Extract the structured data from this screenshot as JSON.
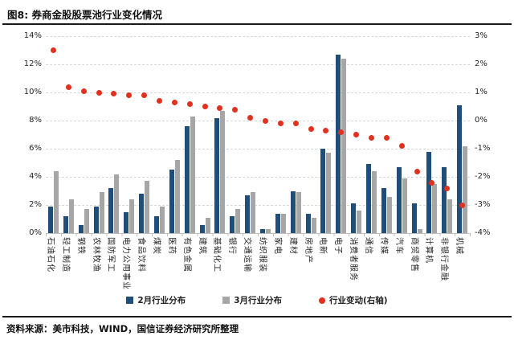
{
  "header": {
    "title": "图8: 券商金股股票池行业变化情况"
  },
  "footer": {
    "source": "资料来源：美市科技，WIND，国信证券经济研究所整理"
  },
  "chart_data": {
    "type": "bar",
    "title": "券商金股股票池行业变化情况",
    "categories": [
      "石油石化",
      "轻工制造",
      "钢铁",
      "农林牧渔",
      "国防军工",
      "电力公用事业",
      "食品饮料",
      "煤炭",
      "医药",
      "有色金属",
      "建筑",
      "基础化工",
      "银行",
      "交通运输",
      "纺织服装",
      "家电",
      "建材",
      "房地产",
      "电新",
      "电子",
      "消费者服务",
      "通信",
      "传媒",
      "汽车",
      "商贸零售",
      "计算机",
      "非银行金融",
      "机械"
    ],
    "series": [
      {
        "name": "2月行业分布",
        "type": "bar",
        "axis": "left",
        "color": "#1F4E79",
        "values": [
          1.9,
          1.2,
          0.6,
          1.9,
          3.2,
          1.5,
          2.8,
          1.2,
          4.5,
          7.6,
          0.6,
          8.2,
          1.2,
          2.7,
          0.3,
          1.4,
          3.0,
          1.4,
          6.0,
          12.7,
          2.1,
          4.9,
          3.2,
          4.7,
          2.1,
          5.8,
          4.7,
          9.1
        ]
      },
      {
        "name": "3月行业分布",
        "type": "bar",
        "axis": "left",
        "color": "#A6A6A6",
        "values": [
          4.4,
          2.4,
          1.7,
          2.9,
          4.2,
          2.4,
          3.7,
          1.9,
          5.2,
          8.3,
          1.1,
          8.7,
          1.7,
          2.9,
          0.3,
          1.4,
          2.9,
          1.1,
          5.7,
          12.4,
          1.6,
          4.4,
          2.6,
          3.9,
          0.3,
          3.5,
          2.4,
          6.2
        ]
      },
      {
        "name": "行业变动(右轴)",
        "type": "scatter",
        "axis": "right",
        "color": "#E0301E",
        "values": [
          2.5,
          1.2,
          1.05,
          1.0,
          0.95,
          0.9,
          0.9,
          0.7,
          0.65,
          0.6,
          0.5,
          0.45,
          0.4,
          0.1,
          0.0,
          -0.1,
          -0.1,
          -0.3,
          -0.35,
          -0.4,
          -0.5,
          -0.6,
          -0.6,
          -0.9,
          -1.8,
          -2.2,
          -2.4,
          -3.0
        ]
      }
    ],
    "left_axis": {
      "min": 0,
      "max": 14,
      "step": 2,
      "ticks": [
        "14%",
        "12%",
        "10%",
        "8%",
        "6%",
        "4%",
        "2%",
        "0%"
      ]
    },
    "right_axis": {
      "min": -4,
      "max": 3,
      "step": 1,
      "ticks": [
        "3%",
        "2%",
        "1%",
        "0%",
        "-1%",
        "-2%",
        "-3%",
        "-4%"
      ]
    },
    "grid": "horizontal-dashed",
    "legend_position": "bottom",
    "x_label_rotation": 90
  }
}
